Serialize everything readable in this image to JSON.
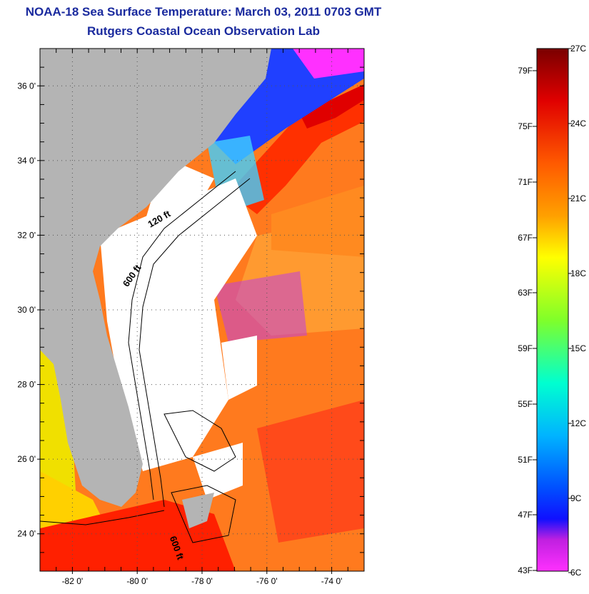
{
  "header": {
    "title": "NOAA-18 Sea Surface Temperature:  March 03, 2011 0703 GMT",
    "subtitle": "Rutgers Coastal Ocean Observation Lab"
  },
  "map": {
    "lon_range": [
      -83,
      -73
    ],
    "lat_range": [
      23,
      37
    ],
    "lat_ticks": [
      {
        "value": 36,
        "label": "36 0'"
      },
      {
        "value": 34,
        "label": "34 0'"
      },
      {
        "value": 32,
        "label": "32 0'"
      },
      {
        "value": 30,
        "label": "30 0'"
      },
      {
        "value": 28,
        "label": "28 0'"
      },
      {
        "value": 26,
        "label": "26 0'"
      },
      {
        "value": 24,
        "label": "24 0'"
      }
    ],
    "lon_ticks": [
      {
        "value": -82,
        "label": "-82 0'"
      },
      {
        "value": -80,
        "label": "-80 0'"
      },
      {
        "value": -78,
        "label": "-78 0'"
      },
      {
        "value": -76,
        "label": "-76 0'"
      },
      {
        "value": -74,
        "label": "-74 0'"
      }
    ],
    "contour_labels": [
      {
        "text": "120 ft",
        "lon": -79.6,
        "lat": 32.2
      },
      {
        "text": "600 ft",
        "lon": -80.3,
        "lat": 30.6
      },
      {
        "text": "600 ft",
        "lon": -79.0,
        "lat": 23.9
      }
    ],
    "colors": {
      "land": "#b4b4b4",
      "cloud": "#ffffff",
      "grid": "#555555"
    }
  },
  "colorbar": {
    "fahrenheit": [
      "79F",
      "75F",
      "71F",
      "67F",
      "63F",
      "59F",
      "55F",
      "51F",
      "47F",
      "43F"
    ],
    "celsius": [
      "27C",
      "24C",
      "21C",
      "18C",
      "15C",
      "12C",
      "9C",
      "6C"
    ],
    "stops": [
      "#7a0000",
      "#e00000",
      "#ff5a00",
      "#ffa000",
      "#ffff00",
      "#7fff2a",
      "#00ffd0",
      "#00b4ff",
      "#0050ff",
      "#1010ff",
      "#c020e0",
      "#ff30ff"
    ]
  }
}
